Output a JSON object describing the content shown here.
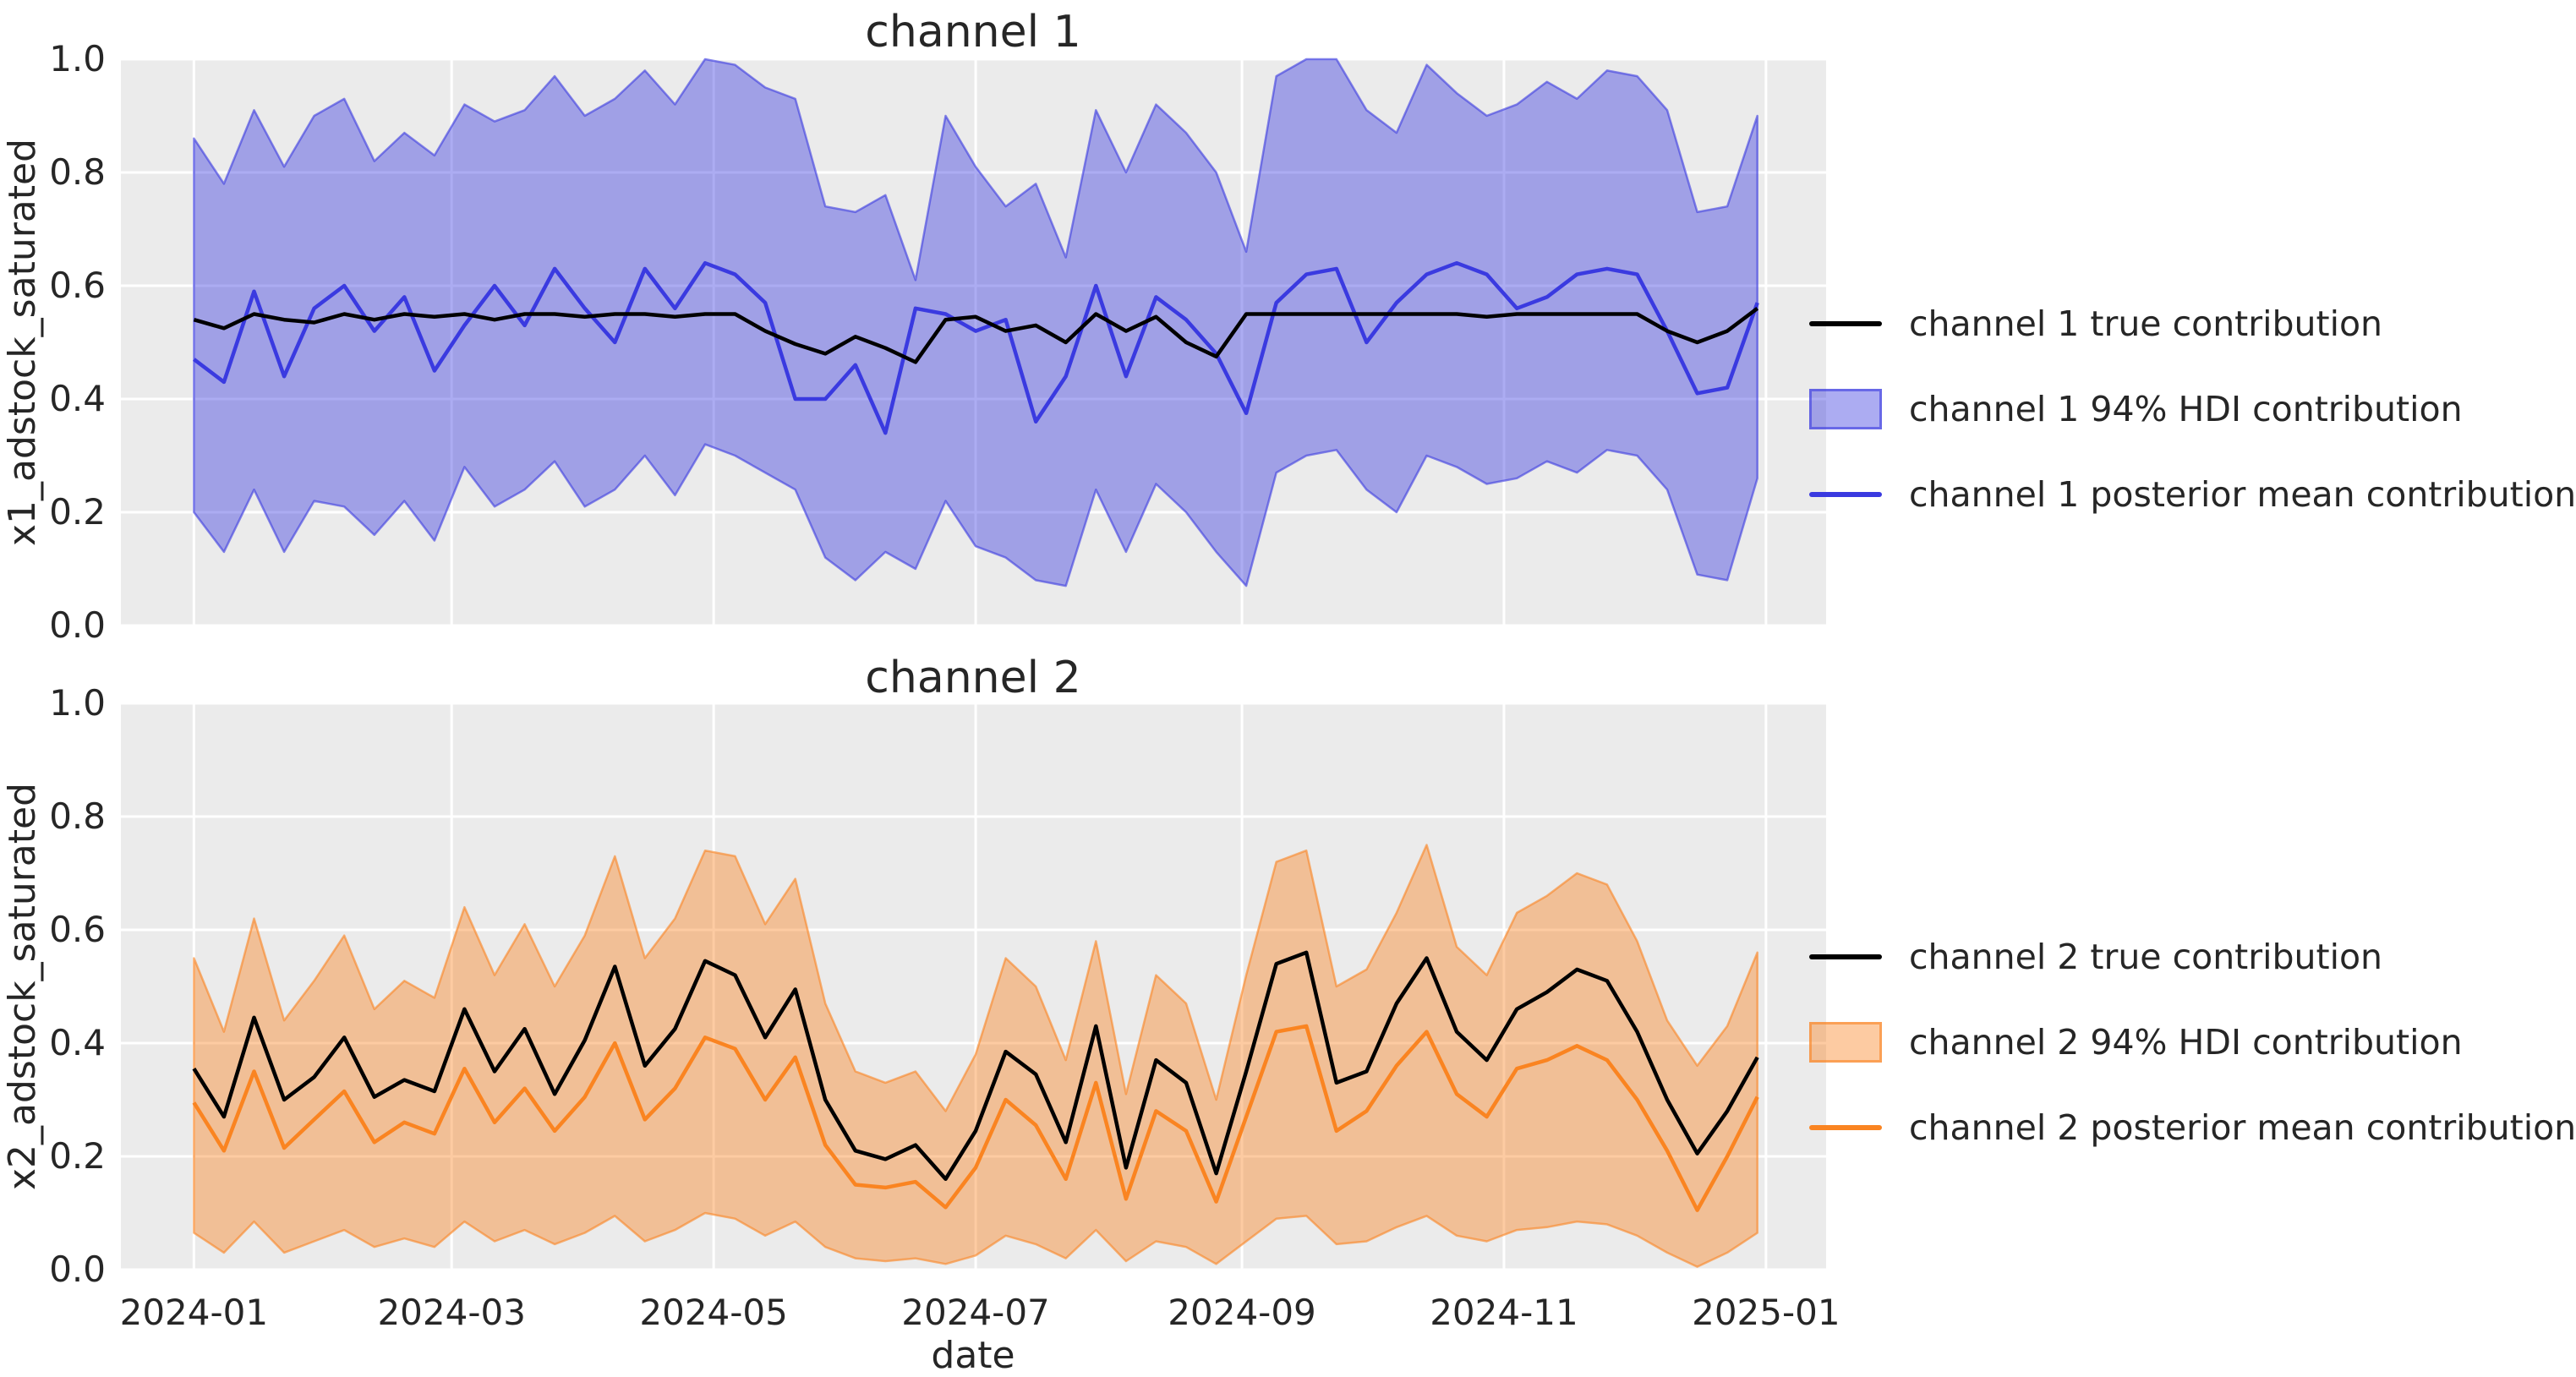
{
  "figure": {
    "background": "#ffffff",
    "axes_background": "#ebebeb",
    "grid_color": "#ffffff",
    "text_color": "#262626",
    "true_line_color": "#000000",
    "channel1_color": "#3a3ae0",
    "channel2_color": "#fa8421",
    "band_fill_alpha": 0.42,
    "band_edge_alpha": 0.6
  },
  "xlabel": "date",
  "axis": {
    "yticks": [
      "0.0",
      "0.2",
      "0.4",
      "0.6",
      "0.8",
      "1.0"
    ],
    "xticks": [
      {
        "label": "2024-01",
        "day": 17
      },
      {
        "label": "2024-03",
        "day": 77
      },
      {
        "label": "2024-05",
        "day": 138
      },
      {
        "label": "2024-07",
        "day": 199
      },
      {
        "label": "2024-09",
        "day": 261
      },
      {
        "label": "2024-11",
        "day": 322
      },
      {
        "label": "2025-01",
        "day": 383
      }
    ],
    "start_day": 17,
    "step_days": 7,
    "total_days": 397,
    "ylim": [
      0.0,
      1.0
    ],
    "weekly_dates": [
      "2024-01-01",
      "2024-01-08",
      "2024-01-15",
      "2024-01-22",
      "2024-01-29",
      "2024-02-05",
      "2024-02-12",
      "2024-02-19",
      "2024-02-26",
      "2024-03-04",
      "2024-03-11",
      "2024-03-18",
      "2024-03-25",
      "2024-04-01",
      "2024-04-08",
      "2024-04-15",
      "2024-04-22",
      "2024-04-29",
      "2024-05-06",
      "2024-05-13",
      "2024-05-20",
      "2024-05-27",
      "2024-06-03",
      "2024-06-10",
      "2024-06-17",
      "2024-06-24",
      "2024-07-01",
      "2024-07-08",
      "2024-07-15",
      "2024-07-22",
      "2024-07-29",
      "2024-08-05",
      "2024-08-12",
      "2024-08-19",
      "2024-08-26",
      "2024-09-02",
      "2024-09-09",
      "2024-09-16",
      "2024-09-23",
      "2024-09-30",
      "2024-10-07",
      "2024-10-14",
      "2024-10-21",
      "2024-10-28",
      "2024-11-04",
      "2024-11-11",
      "2024-11-18",
      "2024-11-25",
      "2024-12-02",
      "2024-12-09",
      "2024-12-16",
      "2024-12-23",
      "2024-12-30"
    ]
  },
  "chart_data": [
    {
      "type": "line+band",
      "title": "channel 1",
      "ylabel": "x1_adstock_saturated",
      "xlabel": "date",
      "ylim": [
        0.0,
        1.0
      ],
      "grid": true,
      "legend_position": "right",
      "accent": "#3a3ae0",
      "legend": [
        {
          "type": "line",
          "color": "#000000",
          "label": "channel 1 true contribution"
        },
        {
          "type": "patch",
          "color": "#3a3ae0",
          "label": "channel 1 94% HDI contribution"
        },
        {
          "type": "line",
          "color": "#3a3ae0",
          "label": "channel 1 posterior mean contribution"
        }
      ],
      "series": [
        {
          "name": "channel 1 true contribution",
          "color": "#000000",
          "values": [
            0.54,
            0.525,
            0.55,
            0.54,
            0.535,
            0.55,
            0.54,
            0.55,
            0.545,
            0.55,
            0.54,
            0.55,
            0.55,
            0.545,
            0.55,
            0.55,
            0.545,
            0.55,
            0.55,
            0.52,
            0.497,
            0.48,
            0.51,
            0.49,
            0.465,
            0.54,
            0.545,
            0.52,
            0.53,
            0.5,
            0.55,
            0.52,
            0.545,
            0.5,
            0.475,
            0.55,
            0.55,
            0.55,
            0.55,
            0.55,
            0.55,
            0.55,
            0.55,
            0.545,
            0.55,
            0.55,
            0.55,
            0.55,
            0.55,
            0.52,
            0.5,
            0.52,
            0.56
          ]
        },
        {
          "name": "channel 1 posterior mean contribution",
          "color": "#3a3ae0",
          "values": [
            0.47,
            0.43,
            0.59,
            0.44,
            0.56,
            0.6,
            0.52,
            0.58,
            0.45,
            0.53,
            0.6,
            0.53,
            0.63,
            0.56,
            0.5,
            0.63,
            0.56,
            0.64,
            0.62,
            0.57,
            0.4,
            0.4,
            0.46,
            0.34,
            0.56,
            0.55,
            0.52,
            0.54,
            0.36,
            0.44,
            0.6,
            0.44,
            0.58,
            0.54,
            0.48,
            0.375,
            0.57,
            0.62,
            0.63,
            0.5,
            0.57,
            0.62,
            0.64,
            0.62,
            0.56,
            0.58,
            0.62,
            0.63,
            0.62,
            0.52,
            0.41,
            0.42,
            0.57
          ]
        },
        {
          "name": "channel 1 94% HDI upper",
          "color": "#3a3ae0",
          "values": [
            0.86,
            0.78,
            0.91,
            0.81,
            0.9,
            0.93,
            0.82,
            0.87,
            0.83,
            0.92,
            0.89,
            0.91,
            0.97,
            0.9,
            0.93,
            0.98,
            0.92,
            1.0,
            0.99,
            0.95,
            0.93,
            0.74,
            0.73,
            0.76,
            0.61,
            0.9,
            0.81,
            0.74,
            0.78,
            0.65,
            0.91,
            0.8,
            0.92,
            0.87,
            0.8,
            0.66,
            0.97,
            1.0,
            1.0,
            0.91,
            0.87,
            0.99,
            0.94,
            0.9,
            0.92,
            0.96,
            0.93,
            0.98,
            0.97,
            0.91,
            0.73,
            0.74,
            0.9
          ]
        },
        {
          "name": "channel 1 94% HDI lower",
          "color": "#3a3ae0",
          "values": [
            0.2,
            0.13,
            0.24,
            0.13,
            0.22,
            0.21,
            0.16,
            0.22,
            0.15,
            0.28,
            0.21,
            0.24,
            0.29,
            0.21,
            0.24,
            0.3,
            0.23,
            0.32,
            0.3,
            0.27,
            0.24,
            0.12,
            0.08,
            0.13,
            0.1,
            0.22,
            0.14,
            0.12,
            0.08,
            0.07,
            0.24,
            0.13,
            0.25,
            0.2,
            0.13,
            0.07,
            0.27,
            0.3,
            0.31,
            0.24,
            0.2,
            0.3,
            0.28,
            0.25,
            0.26,
            0.29,
            0.27,
            0.31,
            0.3,
            0.24,
            0.09,
            0.08,
            0.26
          ]
        }
      ]
    },
    {
      "type": "line+band",
      "title": "channel 2",
      "ylabel": "x2_adstock_saturated",
      "xlabel": "date",
      "ylim": [
        0.0,
        1.0
      ],
      "grid": true,
      "legend_position": "right",
      "accent": "#fa8421",
      "legend": [
        {
          "type": "line",
          "color": "#000000",
          "label": "channel 2 true contribution"
        },
        {
          "type": "patch",
          "color": "#fa8421",
          "label": "channel 2 94% HDI contribution"
        },
        {
          "type": "line",
          "color": "#fa8421",
          "label": "channel 2 posterior mean contribution"
        }
      ],
      "series": [
        {
          "name": "channel 2 true contribution",
          "color": "#000000",
          "values": [
            0.355,
            0.27,
            0.445,
            0.3,
            0.34,
            0.41,
            0.305,
            0.335,
            0.315,
            0.46,
            0.35,
            0.425,
            0.31,
            0.405,
            0.535,
            0.36,
            0.425,
            0.545,
            0.52,
            0.41,
            0.495,
            0.3,
            0.21,
            0.195,
            0.22,
            0.16,
            0.245,
            0.385,
            0.345,
            0.225,
            0.43,
            0.18,
            0.37,
            0.33,
            0.17,
            0.35,
            0.54,
            0.56,
            0.33,
            0.35,
            0.47,
            0.55,
            0.42,
            0.37,
            0.46,
            0.49,
            0.53,
            0.51,
            0.42,
            0.3,
            0.205,
            0.28,
            0.375
          ]
        },
        {
          "name": "channel 2 posterior mean contribution",
          "color": "#fa8421",
          "values": [
            0.295,
            0.21,
            0.35,
            0.215,
            0.265,
            0.315,
            0.225,
            0.26,
            0.24,
            0.355,
            0.26,
            0.32,
            0.245,
            0.305,
            0.4,
            0.265,
            0.32,
            0.41,
            0.39,
            0.3,
            0.375,
            0.22,
            0.15,
            0.145,
            0.155,
            0.11,
            0.18,
            0.3,
            0.255,
            0.16,
            0.33,
            0.125,
            0.28,
            0.245,
            0.12,
            0.27,
            0.42,
            0.43,
            0.245,
            0.28,
            0.36,
            0.42,
            0.31,
            0.27,
            0.355,
            0.37,
            0.395,
            0.37,
            0.3,
            0.21,
            0.105,
            0.2,
            0.305
          ]
        },
        {
          "name": "channel 2 94% HDI upper",
          "color": "#fa8421",
          "values": [
            0.55,
            0.42,
            0.62,
            0.44,
            0.51,
            0.59,
            0.46,
            0.51,
            0.48,
            0.64,
            0.52,
            0.61,
            0.5,
            0.59,
            0.73,
            0.55,
            0.62,
            0.74,
            0.73,
            0.61,
            0.69,
            0.47,
            0.35,
            0.33,
            0.35,
            0.28,
            0.38,
            0.55,
            0.5,
            0.37,
            0.58,
            0.31,
            0.52,
            0.47,
            0.3,
            0.52,
            0.72,
            0.74,
            0.5,
            0.53,
            0.63,
            0.75,
            0.57,
            0.52,
            0.63,
            0.66,
            0.7,
            0.68,
            0.58,
            0.44,
            0.36,
            0.43,
            0.56
          ]
        },
        {
          "name": "channel 2 94% HDI lower",
          "color": "#fa8421",
          "values": [
            0.065,
            0.03,
            0.085,
            0.03,
            0.05,
            0.07,
            0.04,
            0.055,
            0.04,
            0.085,
            0.05,
            0.07,
            0.045,
            0.065,
            0.095,
            0.05,
            0.07,
            0.1,
            0.09,
            0.06,
            0.085,
            0.04,
            0.02,
            0.015,
            0.02,
            0.01,
            0.025,
            0.06,
            0.045,
            0.02,
            0.07,
            0.015,
            0.05,
            0.04,
            0.01,
            0.05,
            0.09,
            0.095,
            0.045,
            0.05,
            0.075,
            0.095,
            0.06,
            0.05,
            0.07,
            0.075,
            0.085,
            0.08,
            0.06,
            0.03,
            0.005,
            0.03,
            0.065
          ]
        }
      ]
    }
  ]
}
